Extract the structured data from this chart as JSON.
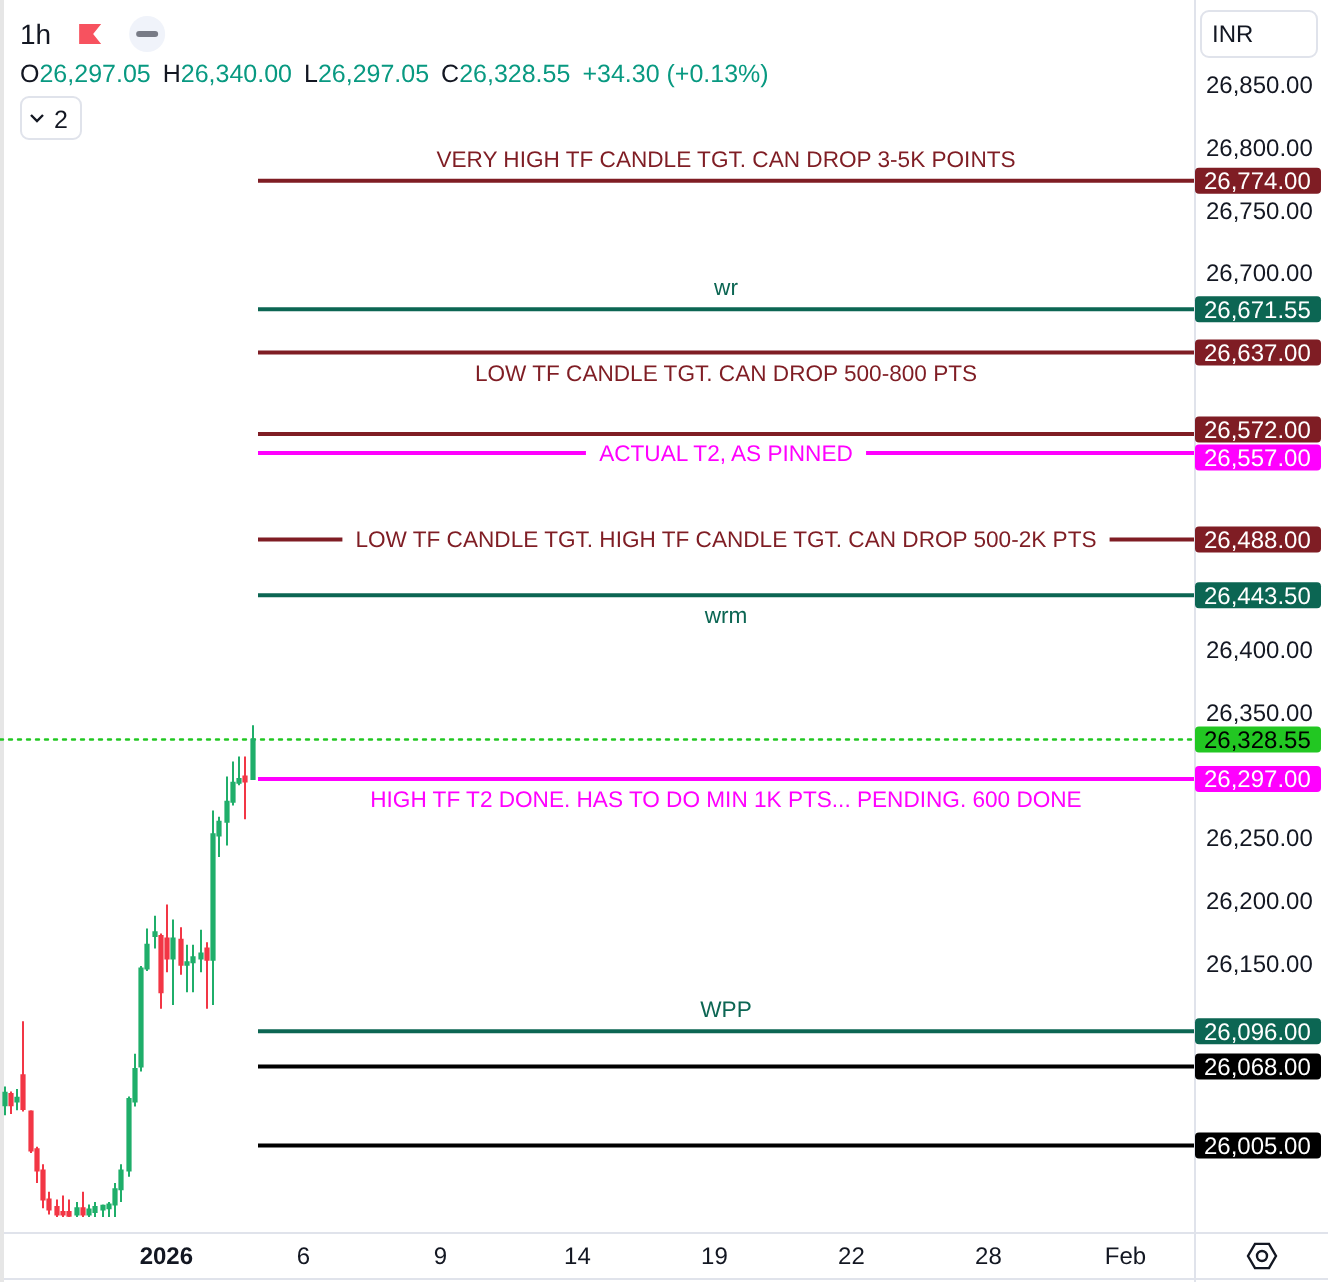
{
  "chart_data": {
    "type": "candlestick",
    "title": "1h",
    "ylabel": "INR",
    "annotations": [
      "O26,297.05",
      "H26,340.00",
      "L26,297.05",
      "C26,328.55",
      "+34.30 (+0.13%)",
      "2"
    ],
    "categories": [
      null,
      null,
      null,
      null,
      null,
      null,
      null,
      null,
      null,
      null,
      null,
      null,
      null,
      null,
      null,
      null,
      null,
      null,
      null,
      null,
      null,
      null,
      null,
      null,
      null,
      "2026",
      null,
      null,
      null,
      null,
      null,
      null,
      null,
      null,
      null,
      null,
      null,
      null,
      null,
      null,
      null,
      null,
      null,
      null,
      null,
      null,
      "6",
      null,
      null,
      null,
      null,
      null,
      null,
      null,
      null,
      null,
      null,
      null,
      null,
      null,
      null,
      null,
      null,
      null,
      null,
      null,
      null,
      "9",
      null,
      null,
      null,
      null,
      null,
      null,
      null,
      null,
      null,
      null,
      null,
      null,
      null,
      null,
      null,
      null,
      null,
      null,
      null,
      null,
      "14",
      null,
      null,
      null,
      null,
      null,
      null,
      null,
      null,
      null,
      null,
      null,
      null,
      null,
      null,
      null,
      null,
      null,
      null,
      null,
      null,
      "19",
      null,
      null,
      null,
      null,
      null,
      null,
      null,
      null,
      null,
      null,
      null,
      null,
      null,
      null,
      null,
      null,
      null,
      null,
      null,
      null,
      "22",
      null,
      null,
      null,
      null,
      null,
      null,
      null,
      null,
      null,
      null,
      null,
      null,
      null,
      null,
      null,
      null,
      null,
      null,
      null,
      null,
      "28",
      null,
      null,
      null,
      null,
      null,
      null,
      null,
      null,
      null,
      null,
      null,
      null,
      null,
      null,
      null,
      null,
      null,
      null,
      null,
      null,
      "Feb",
      null,
      null,
      null,
      null,
      null,
      null,
      null,
      null,
      null,
      null
    ],
    "ohlc": [
      [
        26037,
        26052,
        26029,
        26047
      ],
      [
        26046,
        26048,
        26030,
        26037
      ],
      [
        26040,
        26050,
        26033,
        26043
      ],
      [
        26061,
        26104,
        26032,
        26034
      ],
      [
        26032,
        26033,
        25999,
        26001
      ],
      [
        26002,
        26004,
        25975,
        25985
      ],
      [
        25985,
        25990,
        25955,
        25962
      ],
      [
        25962,
        25968,
        25950,
        25954
      ],
      [
        25956,
        25962,
        25948,
        25950
      ],
      [
        25952,
        25965,
        25948,
        25950
      ],
      [
        25952,
        25962,
        25948,
        25949
      ],
      [
        25950,
        25960,
        25948,
        25955
      ],
      [
        25955,
        25968,
        25948,
        25950
      ],
      [
        25950,
        25958,
        25948,
        25954
      ],
      [
        25952,
        25960,
        25948,
        25956
      ],
      [
        25954,
        25958,
        25948,
        25957
      ],
      [
        25955,
        25960,
        25948,
        25958
      ],
      [
        25958,
        25975,
        25948,
        25970
      ],
      [
        25970,
        25990,
        25960,
        25985
      ],
      [
        25985,
        26044,
        25980,
        26042
      ],
      [
        26040,
        26078,
        26036,
        26066
      ],
      [
        26068,
        26148,
        26064,
        26146
      ],
      [
        26146,
        26178,
        26144,
        26165
      ],
      [
        26172,
        26188,
        26162,
        26175
      ],
      [
        26172,
        26174,
        26114,
        26127
      ],
      [
        26170,
        26197,
        26143,
        26154
      ],
      [
        26154,
        26185,
        26117,
        26170
      ],
      [
        26169,
        26179,
        26141,
        26149
      ],
      [
        26149,
        26165,
        26127,
        26151
      ],
      [
        26151,
        26165,
        26127,
        26155
      ],
      [
        26154,
        26177,
        26143,
        26158
      ],
      [
        26162,
        26167,
        26114,
        26153
      ],
      [
        26153,
        26272,
        26117,
        26253
      ],
      [
        26252,
        26267,
        26235,
        26263
      ],
      [
        26263,
        26299,
        26244,
        26279
      ],
      [
        26279,
        26311,
        26276,
        26294
      ],
      [
        26294,
        26315,
        26292,
        26297
      ],
      [
        26299,
        26315,
        26265,
        26295
      ],
      [
        26297.05,
        26340,
        26297.05,
        26328.55
      ],
      null,
      null,
      null,
      null,
      null,
      null,
      null,
      null,
      null,
      null,
      null,
      null,
      null,
      null,
      null,
      null,
      null,
      null,
      null,
      null,
      null,
      null,
      null,
      null,
      null,
      null,
      null,
      null,
      null,
      null,
      null,
      null,
      null,
      null,
      null,
      null,
      null,
      null,
      null,
      null,
      null,
      null,
      null,
      null,
      null,
      null,
      null,
      null,
      null,
      null,
      null,
      null,
      null,
      null,
      null,
      null,
      null,
      null,
      null,
      null,
      null,
      null,
      null,
      null,
      null,
      null,
      null,
      null,
      null,
      null,
      null,
      null,
      null,
      null,
      null,
      null,
      null,
      null,
      null,
      null,
      null,
      null,
      null,
      null,
      null,
      null,
      null,
      null,
      null,
      null,
      null,
      null,
      null,
      null,
      null,
      null,
      null,
      null,
      null,
      null,
      null,
      null,
      null,
      null,
      null,
      null,
      null,
      null,
      null,
      null,
      null,
      null,
      null,
      null,
      null,
      null,
      null,
      null,
      null,
      null,
      null,
      null,
      null,
      null,
      null,
      null,
      null,
      null,
      null,
      null,
      null,
      null,
      null,
      null,
      null,
      null,
      null,
      null,
      null,
      null,
      null,
      null,
      null,
      null
    ],
    "colors": [
      "#1fae6a",
      "#f23645",
      "#1fae6a",
      "#f23645",
      "#f23645",
      "#f23645",
      "#f23645",
      "#f23645",
      "#f23645",
      "#f23645",
      "#f23645",
      "#1fae6a",
      "#f23645",
      "#1fae6a",
      "#1fae6a",
      "#1fae6a",
      "#1fae6a",
      "#1fae6a",
      "#1fae6a",
      "#1fae6a",
      "#1fae6a",
      "#1fae6a",
      "#1fae6a",
      "#1fae6a",
      "#f23645",
      "#f23645",
      "#1fae6a",
      "#f23645",
      "#1fae6a",
      "#1fae6a",
      "#1fae6a",
      "#f23645",
      "#1fae6a",
      "#1fae6a",
      "#1fae6a",
      "#1fae6a",
      "#1fae6a",
      "#f23645",
      "#1fae6a",
      null,
      null,
      null,
      null,
      null,
      null,
      null,
      null,
      null,
      null,
      null,
      null,
      null,
      null,
      null,
      null,
      null,
      null,
      null,
      null,
      null,
      null,
      null,
      null,
      null,
      null,
      null,
      null,
      null,
      null,
      null,
      null,
      null,
      null,
      null,
      null,
      null,
      null,
      null,
      null,
      null,
      null,
      null,
      null,
      null,
      null,
      null,
      null,
      null,
      null,
      null,
      null,
      null,
      null,
      null,
      null,
      null,
      null,
      null,
      null,
      null,
      null,
      null,
      null,
      null,
      null,
      null,
      null,
      null,
      null,
      null,
      null,
      null,
      null,
      null,
      null,
      null,
      null,
      null,
      null,
      null,
      null,
      null,
      null,
      null,
      null,
      null,
      null,
      null,
      null,
      null,
      null,
      null,
      null,
      null,
      null,
      null,
      null,
      null,
      null,
      null,
      null,
      null,
      null,
      null,
      null,
      null,
      null,
      null,
      null,
      null,
      null,
      null,
      null,
      null,
      null,
      null,
      null,
      null,
      null,
      null,
      null,
      null,
      null,
      null,
      null,
      null,
      null,
      null,
      null,
      null,
      null,
      null,
      null,
      null,
      null,
      null,
      null,
      null,
      null,
      null,
      null,
      null,
      null
    ],
    "ylim": [
      25936,
      26918
    ],
    "yticks": [
      {
        "value": 26850,
        "label": "26,850.00"
      },
      {
        "value": 26800,
        "label": "26,800.00"
      },
      {
        "value": 26774,
        "label": "26,774.00"
      },
      {
        "value": 26750,
        "label": "26,750.00"
      },
      {
        "value": 26700,
        "label": "26,700.00"
      },
      {
        "value": 26671.55,
        "label": "26,671.55"
      },
      {
        "value": 26637,
        "label": "26,637.00"
      },
      {
        "value": 26572,
        "label": "26,572.00"
      },
      {
        "value": 26557,
        "label": "26,557.00"
      },
      {
        "value": 26488,
        "label": "26,488.00"
      },
      {
        "value": 26443.5,
        "label": "26,443.50"
      },
      {
        "value": 26400,
        "label": "26,400.00"
      },
      {
        "value": 26350,
        "label": "26,350.00"
      },
      {
        "value": 26328.55,
        "label": "26,328.55"
      },
      {
        "value": 26297,
        "label": "26,297.00"
      },
      {
        "value": 26250,
        "label": "26,250.00"
      },
      {
        "value": 26200,
        "label": "26,200.00"
      },
      {
        "value": 26150,
        "label": "26,150.00"
      },
      {
        "value": 26096,
        "label": "26,096.00"
      },
      {
        "value": 26068,
        "label": "26,068.00"
      },
      {
        "value": 26005,
        "label": "26,005.00"
      }
    ],
    "ref_lines": [
      {
        "axis": "y",
        "value": 26774,
        "label": "VERY HIGH TF CANDLE TGT. CAN DROP 3-5K POINTS",
        "color": "#7f1d24",
        "line_style": "solid"
      },
      {
        "axis": "y",
        "value": 26671.55,
        "label": "wr",
        "color": "#0c6653",
        "line_style": "solid"
      },
      {
        "axis": "y",
        "value": 26637,
        "label": "LOW TF CANDLE TGT. CAN DROP 500-800 PTS",
        "color": "#7f1d24",
        "line_style": "solid"
      },
      {
        "axis": "y",
        "value": 26572,
        "label": null,
        "color": "#7f1d24",
        "line_style": "solid"
      },
      {
        "axis": "y",
        "value": 26557,
        "label": "ACTUAL T2, AS PINNED",
        "color": "#ff00ff",
        "line_style": "solid"
      },
      {
        "axis": "y",
        "value": 26488,
        "label": "LOW TF CANDLE TGT. HIGH TF CANDLE TGT. CAN DROP 500-2K PTS",
        "color": "#7f1d24",
        "line_style": "solid"
      },
      {
        "axis": "y",
        "value": 26443.5,
        "label": "wrm",
        "color": "#0c6653",
        "line_style": "solid"
      },
      {
        "axis": "y",
        "value": 26328.55,
        "label": null,
        "color": "#22c722",
        "line_style": "dotted"
      },
      {
        "axis": "y",
        "value": 26297,
        "label": "HIGH TF T2 DONE. HAS TO DO MIN 1K PTS... PENDING. 600 DONE",
        "color": "#ff00ff",
        "line_style": "solid"
      },
      {
        "axis": "y",
        "value": 26096,
        "label": "WPP",
        "color": "#0c6653",
        "line_style": "solid"
      },
      {
        "axis": "y",
        "value": 26068,
        "label": null,
        "color": "#000000",
        "line_style": "solid"
      },
      {
        "axis": "y",
        "value": 26005,
        "label": null,
        "color": "#000000",
        "line_style": "solid"
      }
    ]
  }
}
